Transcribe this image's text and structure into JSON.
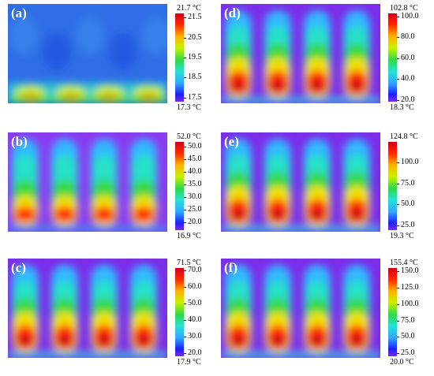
{
  "panels": [
    {
      "label": "(a)",
      "max_label": "21.7 °C",
      "min_label": "17.3 °C",
      "ticks": [
        "21.5",
        "20.5",
        "19.5",
        "18.5",
        "17.5"
      ],
      "tick_values": [
        21.5,
        20.5,
        19.5,
        18.5,
        17.5
      ],
      "scale_min": 17.3,
      "scale_max": 21.7,
      "pattern": "waves"
    },
    {
      "label": "(b)",
      "max_label": "52.0 °C",
      "min_label": "16.9 °C",
      "ticks": [
        "50.0",
        "45.0",
        "40.0",
        "35.0",
        "30.0",
        "25.0",
        "20.0"
      ],
      "tick_values": [
        50,
        45,
        40,
        35,
        30,
        25,
        20
      ],
      "scale_min": 16.9,
      "scale_max": 52.0,
      "pattern": "fingers-low"
    },
    {
      "label": "(c)",
      "max_label": "71.5 °C",
      "min_label": "17.9 °C",
      "ticks": [
        "70.0",
        "60.0",
        "50.0",
        "40.0",
        "30.0",
        "20.0"
      ],
      "tick_values": [
        70,
        60,
        50,
        40,
        30,
        20
      ],
      "scale_min": 17.9,
      "scale_max": 71.5,
      "pattern": "fingers"
    },
    {
      "label": "(d)",
      "max_label": "102.8 °C",
      "min_label": "18.3 °C",
      "ticks": [
        "100.0",
        "80.0",
        "60.0",
        "40.0",
        "20.0"
      ],
      "tick_values": [
        100,
        80,
        60,
        40,
        20
      ],
      "scale_min": 18.3,
      "scale_max": 102.8,
      "pattern": "fingers"
    },
    {
      "label": "(e)",
      "max_label": "124.8 °C",
      "min_label": "19.3 °C",
      "ticks": [
        "100.0",
        "75.0",
        "50.0",
        "25.0"
      ],
      "tick_values": [
        100,
        75,
        50,
        25
      ],
      "scale_min": 19.3,
      "scale_max": 124.8,
      "pattern": "fingers"
    },
    {
      "label": "(f)",
      "max_label": "155.4 °C",
      "min_label": "20.0 °C",
      "ticks": [
        "150.0",
        "125.0",
        "100.0",
        "75.0",
        "50.0",
        "25.0"
      ],
      "tick_values": [
        150,
        125,
        100,
        75,
        50,
        25
      ],
      "scale_min": 20.0,
      "scale_max": 155.4,
      "pattern": "fingers"
    }
  ],
  "colormap": [
    "#1e1eff",
    "#2fa8ff",
    "#26e0d8",
    "#2fd84a",
    "#c8f000",
    "#ffb000",
    "#ff2a00",
    "#d00018"
  ]
}
